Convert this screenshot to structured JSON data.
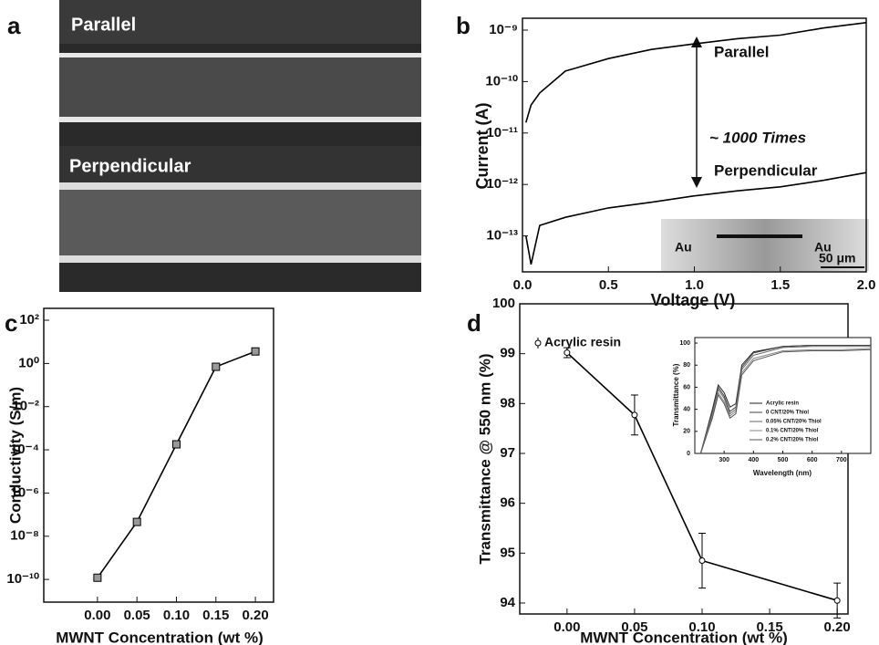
{
  "image_panel": {
    "label": "a",
    "texts": [
      "Parallel",
      "Perpendicular"
    ]
  },
  "chart_data": [
    {
      "type": "line",
      "label": "b",
      "x_label": "Voltage (V)",
      "y_label": "Current (A)",
      "log_y": true,
      "marker": "none",
      "x": [
        0.02,
        0.05,
        0.1,
        0.25,
        0.5,
        0.75,
        1.0,
        1.25,
        1.5,
        1.75,
        2.0
      ],
      "series": [
        {
          "name": "Parallel",
          "color": "#000000",
          "values": [
            1.6e-11,
            3.5e-11,
            6e-11,
            1.6e-10,
            2.8e-10,
            4.2e-10,
            5.4e-10,
            6.8e-10,
            8e-10,
            1.1e-09,
            1.4e-09
          ]
        },
        {
          "name": "Perpendicular",
          "color": "#000000",
          "values": [
            1e-13,
            2.8e-14,
            1.6e-13,
            2.3e-13,
            3.5e-13,
            4.5e-13,
            6e-13,
            7.5e-13,
            9e-13,
            1.2e-12,
            1.7e-12
          ]
        }
      ],
      "annotations": [
        "Parallel",
        "~ 1000 Times",
        "Perpendicular",
        "Au",
        "Au",
        "50 μm"
      ],
      "xlim": [
        0,
        2.0
      ],
      "ylim": [
        2e-14,
        1.7e-09
      ],
      "xticks": [
        {
          "value": 0,
          "label": "0.0"
        },
        0.5,
        {
          "value": 1,
          "label": "1.0"
        },
        1.5,
        {
          "value": 2,
          "label": "2.0"
        }
      ],
      "yticks": [
        {
          "value": 1e-09,
          "label": "10⁻⁹"
        },
        {
          "value": 1e-10,
          "label": "10⁻¹⁰"
        },
        {
          "value": 1e-11,
          "label": "10⁻¹¹"
        },
        {
          "value": 1e-12,
          "label": "10⁻¹²"
        },
        {
          "value": 1e-13,
          "label": "10⁻¹³"
        }
      ]
    },
    {
      "type": "line",
      "label": "c",
      "x_label": "MWNT Concentration (wt %)",
      "y_label": "Conductivity (S/m)",
      "log_y": true,
      "marker": "square",
      "x": [
        0,
        0.05,
        0.1,
        0.15,
        0.2
      ],
      "series": [
        {
          "color": "#000000",
          "values": [
            1.2e-10,
            4.6e-08,
            0.00018,
            0.7,
            3.6
          ]
        }
      ],
      "xlim": [
        -0.068,
        0.223
      ],
      "ylim": [
        8.9e-12,
        355
      ],
      "xticks": [
        {
          "value": 0,
          "label": "0.00"
        },
        0.05,
        {
          "value": 0.1,
          "label": "0.10"
        },
        0.15,
        {
          "value": 0.2,
          "label": "0.20"
        }
      ],
      "yticks": [
        {
          "value": 100,
          "label": "10²"
        },
        {
          "value": 1,
          "label": "10⁰"
        },
        {
          "value": 0.01,
          "label": "10⁻²"
        },
        {
          "value": 0.0001,
          "label": "10⁻⁴"
        },
        {
          "value": 1e-06,
          "label": "10⁻⁶"
        },
        {
          "value": 1e-08,
          "label": "10⁻⁸"
        },
        {
          "value": 1e-10,
          "label": "10⁻¹⁰"
        }
      ]
    },
    {
      "type": "line",
      "label": "d",
      "x_label": "MWNT Concentration (wt %)",
      "y_label": "Transmittance @ 550 nm (%)",
      "log_y": false,
      "marker": "circle",
      "legend": "upper left",
      "x": [
        0,
        0.05,
        0.1,
        0.2
      ],
      "series": [
        {
          "name": "Acrylic resin",
          "color": "#000000",
          "values": [
            99.02,
            97.77,
            94.85,
            94.05
          ],
          "errors": [
            0.1,
            0.4,
            0.55,
            0.35
          ]
        }
      ],
      "xlim": [
        -0.035,
        0.208
      ],
      "ylim": [
        93.78,
        100
      ],
      "xticks": [
        {
          "value": 0,
          "label": "0.00"
        },
        0.05,
        {
          "value": 0.1,
          "label": "0.10"
        },
        0.15,
        {
          "value": 0.2,
          "label": "0.20"
        }
      ],
      "yticks": [
        94,
        95,
        96,
        97,
        98,
        99,
        100
      ]
    },
    {
      "type": "line",
      "x_label": "Wavelength (nm)",
      "y_label": "Transmittance (%)",
      "log_y": false,
      "marker": "none",
      "legend": "lower right",
      "x": [
        220,
        260,
        280,
        300,
        320,
        340,
        360,
        400,
        500,
        600,
        700,
        800
      ],
      "series": [
        {
          "name": "Acrylic resin",
          "color": "#222222",
          "values": [
            0,
            40,
            62,
            55,
            42,
            45,
            80,
            92,
            97,
            98,
            98,
            98
          ]
        },
        {
          "name": "0 CNT/20% Thiol",
          "color": "#444444",
          "values": [
            0,
            38,
            60,
            52,
            38,
            42,
            78,
            91,
            97,
            98,
            98,
            98
          ]
        },
        {
          "name": "0.05% CNT/20% Thiol",
          "color": "#666666",
          "values": [
            0,
            36,
            58,
            50,
            36,
            40,
            76,
            89,
            96,
            97,
            97,
            97
          ]
        },
        {
          "name": "0.1% CNT/20% Thiol",
          "color": "#888888",
          "values": [
            0,
            34,
            55,
            47,
            34,
            38,
            73,
            86,
            93,
            94,
            94,
            95
          ]
        },
        {
          "name": "0.2% CNT/20% Thiol",
          "color": "#555555",
          "values": [
            0,
            32,
            53,
            45,
            32,
            36,
            71,
            84,
            92,
            93,
            93,
            94
          ]
        }
      ],
      "xlim": [
        200,
        800
      ],
      "ylim": [
        0,
        105
      ],
      "xticks": [
        300,
        400,
        500,
        600,
        700
      ],
      "yticks": [
        0,
        20,
        40,
        60,
        80,
        100
      ]
    }
  ]
}
